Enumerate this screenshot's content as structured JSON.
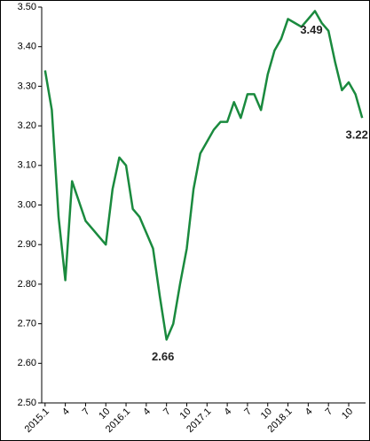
{
  "chart_data": {
    "type": "line",
    "categories": [
      "2015.1",
      null,
      null,
      "4",
      null,
      null,
      "7",
      null,
      null,
      "10",
      null,
      null,
      "2016.1",
      null,
      null,
      "4",
      null,
      null,
      "7",
      null,
      null,
      "10",
      null,
      null,
      "2017.1",
      null,
      null,
      "4",
      null,
      null,
      "7",
      null,
      null,
      "10",
      null,
      null,
      "2018.1",
      null,
      null,
      "4",
      null,
      null,
      "7",
      null,
      null,
      "10",
      null,
      null
    ],
    "series": [
      {
        "color": "#1a8a3e",
        "values": [
          3.34,
          3.24,
          2.97,
          2.81,
          3.06,
          3.01,
          2.96,
          2.94,
          2.92,
          2.9,
          3.04,
          3.12,
          3.1,
          2.99,
          2.97,
          2.93,
          2.89,
          2.77,
          2.66,
          2.7,
          2.8,
          2.89,
          3.04,
          3.13,
          3.16,
          3.19,
          3.21,
          3.21,
          3.26,
          3.22,
          3.28,
          3.28,
          3.24,
          3.33,
          3.39,
          3.42,
          3.47,
          3.46,
          3.45,
          3.47,
          3.49,
          3.46,
          3.44,
          3.36,
          3.29,
          3.31,
          3.28,
          3.22
        ],
        "value_labels": [
          null,
          null,
          null,
          null,
          null,
          null,
          null,
          null,
          null,
          null,
          null,
          null,
          null,
          null,
          null,
          null,
          null,
          null,
          "2.66",
          null,
          null,
          null,
          null,
          null,
          null,
          null,
          null,
          null,
          null,
          null,
          null,
          null,
          null,
          null,
          null,
          null,
          null,
          null,
          null,
          null,
          "3.49",
          null,
          null,
          null,
          null,
          null,
          null,
          "3.22"
        ]
      }
    ],
    "ylim": [
      2.5,
      3.5
    ],
    "yticks": [
      {
        "value": 2.5,
        "label": "2.50"
      },
      {
        "value": 2.6,
        "label": "2.60"
      },
      {
        "value": 2.7,
        "label": "2.70"
      },
      {
        "value": 2.8,
        "label": "2.80"
      },
      {
        "value": 2.9,
        "label": "2.90"
      },
      {
        "value": 3.0,
        "label": "3.00"
      },
      {
        "value": 3.1,
        "label": "3.10"
      },
      {
        "value": 3.2,
        "label": "3.20"
      },
      {
        "value": 3.3,
        "label": "3.30"
      },
      {
        "value": 3.4,
        "label": "3.40"
      },
      {
        "value": 3.5,
        "label": "3.50"
      }
    ]
  }
}
